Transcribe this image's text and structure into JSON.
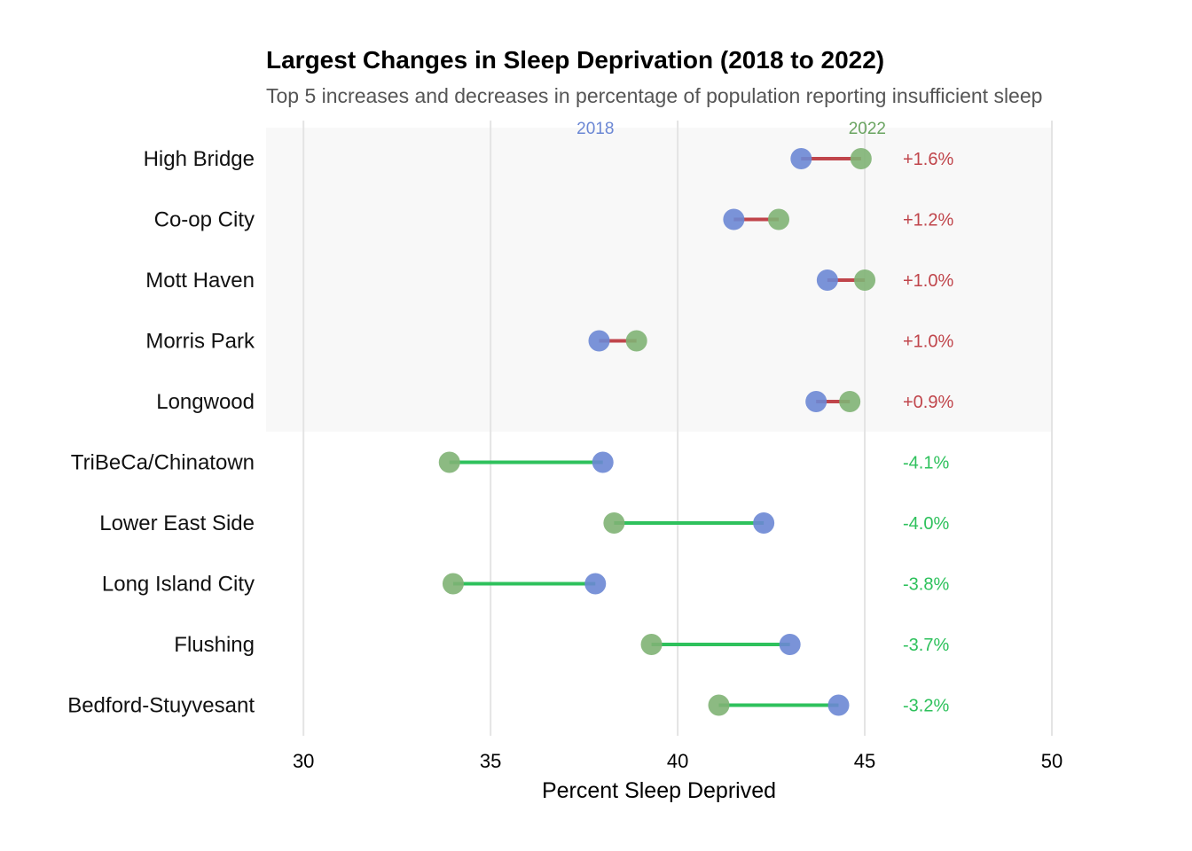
{
  "chart_data": {
    "type": "dumbbell",
    "title": "Largest Changes in Sleep Deprivation (2018 to 2022)",
    "subtitle": "Top 5 increases and decreases in percentage of population reporting insufficient sleep",
    "xlabel": "Percent Sleep Deprived",
    "xlim": [
      29,
      50
    ],
    "xticks": [
      30,
      35,
      40,
      45,
      50
    ],
    "grid": "vertical",
    "legend_labels": {
      "start": "2018",
      "end": "2022"
    },
    "colors": {
      "start_point": "#6b87d4",
      "end_point": "#7fb274",
      "increase": "#c0454b",
      "decrease": "#2ec15c",
      "legend_start": "#6b87d4",
      "legend_end": "#6aa461",
      "highlight_band": "#f8f8f8",
      "gridline": "#e4e4e4",
      "title": "#000000",
      "subtitle": "#555555"
    },
    "highlighted_group": "increases",
    "rows": [
      {
        "name": "High Bridge",
        "v2018": 43.3,
        "v2022": 44.9,
        "change_label": "+1.6%",
        "direction": "increase"
      },
      {
        "name": "Co-op City",
        "v2018": 41.5,
        "v2022": 42.7,
        "change_label": "+1.2%",
        "direction": "increase"
      },
      {
        "name": "Mott Haven",
        "v2018": 44.0,
        "v2022": 45.0,
        "change_label": "+1.0%",
        "direction": "increase"
      },
      {
        "name": "Morris Park",
        "v2018": 37.9,
        "v2022": 38.9,
        "change_label": "+1.0%",
        "direction": "increase"
      },
      {
        "name": "Longwood",
        "v2018": 43.7,
        "v2022": 44.6,
        "change_label": "+0.9%",
        "direction": "increase"
      },
      {
        "name": "TriBeCa/Chinatown",
        "v2018": 38.0,
        "v2022": 33.9,
        "change_label": "-4.1%",
        "direction": "decrease"
      },
      {
        "name": "Lower East Side",
        "v2018": 42.3,
        "v2022": 38.3,
        "change_label": "-4.0%",
        "direction": "decrease"
      },
      {
        "name": "Long Island City",
        "v2018": 37.8,
        "v2022": 34.0,
        "change_label": "-3.8%",
        "direction": "decrease"
      },
      {
        "name": "Flushing",
        "v2018": 43.0,
        "v2022": 39.3,
        "change_label": "-3.7%",
        "direction": "decrease"
      },
      {
        "name": "Bedford-Stuyvesant",
        "v2018": 44.3,
        "v2022": 41.1,
        "change_label": "-3.2%",
        "direction": "decrease"
      }
    ]
  }
}
